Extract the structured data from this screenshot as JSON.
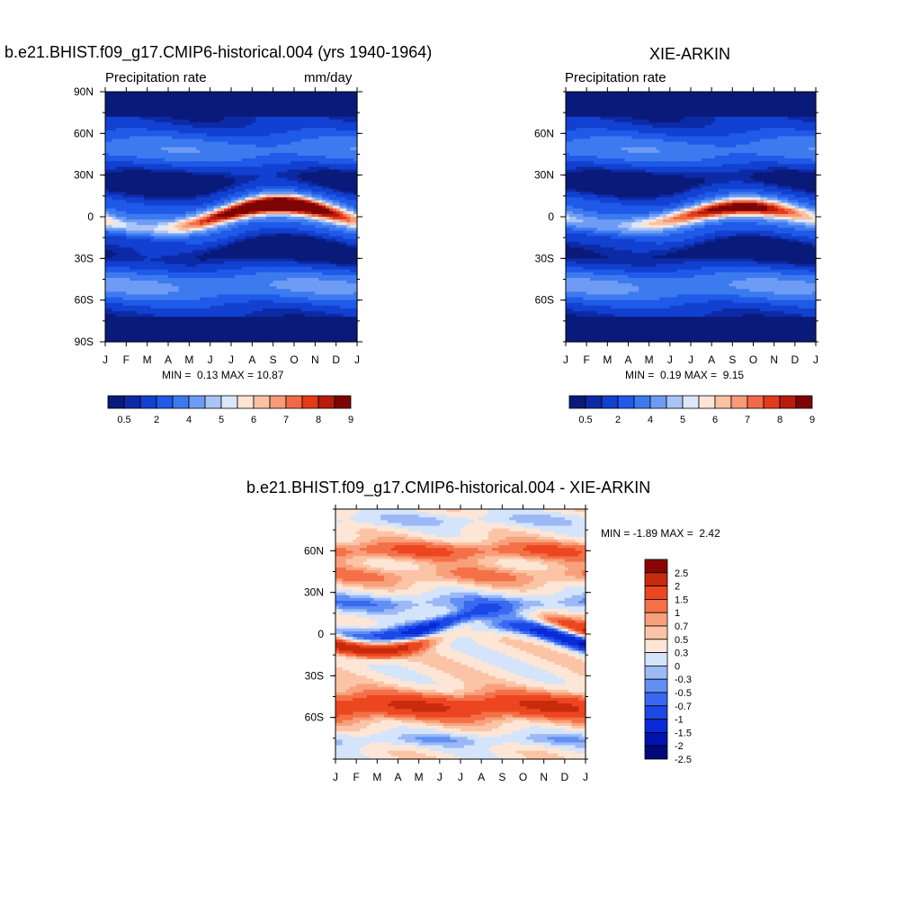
{
  "palette": {
    "abs": [
      "#0a1a7a",
      "#0d2aa6",
      "#1240d0",
      "#1f5ae8",
      "#3d7af0",
      "#6e9cf4",
      "#a9c4f7",
      "#dbe8fb",
      "#fde4d4",
      "#fbc1a3",
      "#f69a78",
      "#f26a44",
      "#e33a1c",
      "#b81b0c",
      "#7e0404"
    ],
    "diff": [
      "#000a7a",
      "#0012b0",
      "#0a2ad6",
      "#1b48e6",
      "#3a68f0",
      "#6090f4",
      "#9cb8f6",
      "#d4e4fb",
      "#fde6d6",
      "#fcc4a6",
      "#f8a07c",
      "#f47148",
      "#ec4620",
      "#c82a0c",
      "#8a0606"
    ]
  },
  "chart_data": [
    {
      "type": "heatmap",
      "title": "b.e21.BHIST.f09_g17.CMIP6-historical.004 (yrs 1940-1964)",
      "left_label": "Precipitation rate",
      "right_label": "mm/day",
      "x_ticks": [
        "J",
        "F",
        "M",
        "A",
        "M",
        "J",
        "J",
        "A",
        "S",
        "O",
        "N",
        "D",
        "J"
      ],
      "y_ticks": [
        "90N",
        "60N",
        "30N",
        "0",
        "30S",
        "60S",
        "90S"
      ],
      "y_tick_values": [
        90,
        60,
        30,
        0,
        -30,
        -60,
        -90
      ],
      "ylim": [
        -90,
        90
      ],
      "min_label": "MIN =",
      "min_value": "0.13",
      "max_label": "MAX =",
      "max_value": "10.87",
      "colorbar_ticks": [
        "0.5",
        "2",
        "4",
        "5",
        "6",
        "7",
        "8",
        "9"
      ],
      "colorbar_tick_boxes": [
        1,
        3,
        5,
        7,
        9,
        11,
        13,
        15
      ],
      "itcz": {
        "phase_deg": 160,
        "amplitude": 9,
        "peak": 10.9
      }
    },
    {
      "type": "heatmap",
      "title": "XIE-ARKIN",
      "left_label": "Precipitation rate",
      "right_label": "",
      "x_ticks": [
        "J",
        "F",
        "M",
        "A",
        "M",
        "J",
        "J",
        "A",
        "S",
        "O",
        "N",
        "D",
        "J"
      ],
      "y_ticks": [
        "60N",
        "30N",
        "0",
        "30S",
        "60S"
      ],
      "y_tick_values": [
        60,
        30,
        0,
        -30,
        -60
      ],
      "ylim": [
        -90,
        90
      ],
      "min_label": "MIN =",
      "min_value": "0.19",
      "max_label": "MAX =",
      "max_value": "9.15",
      "colorbar_ticks": [
        "0.5",
        "2",
        "4",
        "5",
        "6",
        "7",
        "8",
        "9"
      ],
      "colorbar_tick_boxes": [
        1,
        3,
        5,
        7,
        9,
        11,
        13,
        15
      ],
      "itcz": {
        "phase_deg": 170,
        "amplitude": 7,
        "peak": 9.1
      }
    },
    {
      "type": "heatmap",
      "title": "b.e21.BHIST.f09_g17.CMIP6-historical.004 - XIE-ARKIN",
      "left_label": "",
      "right_label": "",
      "x_ticks": [
        "J",
        "F",
        "M",
        "A",
        "M",
        "J",
        "J",
        "A",
        "S",
        "O",
        "N",
        "D",
        "J"
      ],
      "y_ticks": [
        "60N",
        "30N",
        "0",
        "30S",
        "60S"
      ],
      "y_tick_values": [
        60,
        30,
        0,
        -30,
        -60
      ],
      "ylim": [
        -90,
        90
      ],
      "min_label": "MIN =",
      "min_value": "-1.89",
      "max_label": "MAX =",
      "max_value": "2.42",
      "colorbar_ticks": [
        "2.5",
        "2",
        "1.5",
        "1",
        "0.7",
        "0.5",
        "0.3",
        "0",
        "-0.3",
        "-0.5",
        "-0.7",
        "-1",
        "-1.5",
        "-2",
        "-2.5"
      ]
    }
  ]
}
